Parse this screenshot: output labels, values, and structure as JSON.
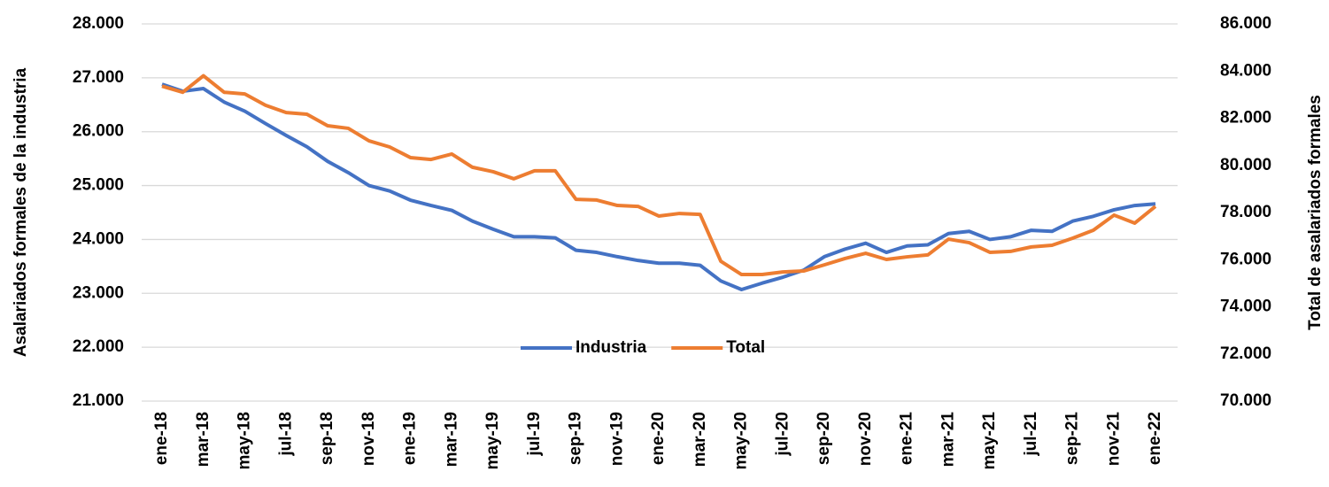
{
  "chart_data": {
    "type": "line",
    "ylabel": "Asalariados formales de la industria",
    "y2label": "Total de asalariados formales",
    "categories": [
      "ene-18",
      null,
      "mar-18",
      null,
      "may-18",
      null,
      "jul-18",
      null,
      "sep-18",
      null,
      "nov-18",
      null,
      "ene-19",
      null,
      "mar-19",
      null,
      "may-19",
      null,
      "jul-19",
      null,
      "sep-19",
      null,
      "nov-19",
      null,
      "ene-20",
      null,
      "mar-20",
      null,
      "may-20",
      null,
      "jul-20",
      null,
      "sep-20",
      null,
      "nov-20",
      null,
      "ene-21",
      null,
      "mar-21",
      null,
      "may-21",
      null,
      "jul-21",
      null,
      "sep-21",
      null,
      "nov-21",
      null,
      "ene-22"
    ],
    "series": [
      {
        "name": "Industria",
        "color": "#4472c4",
        "axis": "y",
        "values": [
          26880,
          26750,
          26800,
          26550,
          26380,
          26150,
          25930,
          25720,
          25450,
          25240,
          25000,
          24900,
          24730,
          24630,
          24540,
          24340,
          24190,
          24050,
          24050,
          24030,
          23800,
          23760,
          23680,
          23610,
          23560,
          23560,
          23520,
          23230,
          23070,
          23190,
          23300,
          23430,
          23680,
          23820,
          23930,
          23760,
          23880,
          23900,
          24110,
          24150,
          24000,
          24050,
          24170,
          24150,
          24340,
          24430,
          24550,
          24630,
          24660
        ]
      },
      {
        "name": "Total",
        "color": "#ed7d31",
        "axis": "y2",
        "values": [
          83360,
          83100,
          83800,
          83100,
          83030,
          82550,
          82240,
          82170,
          81680,
          81570,
          81040,
          80780,
          80330,
          80250,
          80480,
          79920,
          79730,
          79430,
          79770,
          79770,
          78560,
          78530,
          78300,
          78260,
          77850,
          77960,
          77920,
          75930,
          75370,
          75370,
          75480,
          75520,
          75780,
          76050,
          76270,
          76010,
          76120,
          76200,
          76870,
          76720,
          76310,
          76350,
          76540,
          76610,
          76910,
          77250,
          77890,
          77550,
          78260
        ]
      }
    ],
    "ylim": [
      21000,
      28000
    ],
    "yticks": [
      {
        "value": 21000,
        "label": "21.000"
      },
      {
        "value": 22000,
        "label": "22.000"
      },
      {
        "value": 23000,
        "label": "23.000"
      },
      {
        "value": 24000,
        "label": "24.000"
      },
      {
        "value": 25000,
        "label": "25.000"
      },
      {
        "value": 26000,
        "label": "26.000"
      },
      {
        "value": 27000,
        "label": "27.000"
      },
      {
        "value": 28000,
        "label": "28.000"
      }
    ],
    "y2lim": [
      70000,
      86000
    ],
    "y2ticks": [
      {
        "value": 70000,
        "label": "70.000"
      },
      {
        "value": 72000,
        "label": "72.000"
      },
      {
        "value": 74000,
        "label": "74.000"
      },
      {
        "value": 76000,
        "label": "76.000"
      },
      {
        "value": 78000,
        "label": "78.000"
      },
      {
        "value": 80000,
        "label": "80.000"
      },
      {
        "value": 82000,
        "label": "82.000"
      },
      {
        "value": 84000,
        "label": "84.000"
      },
      {
        "value": 86000,
        "label": "86.000"
      }
    ],
    "grid": true,
    "legend": "bottom"
  }
}
